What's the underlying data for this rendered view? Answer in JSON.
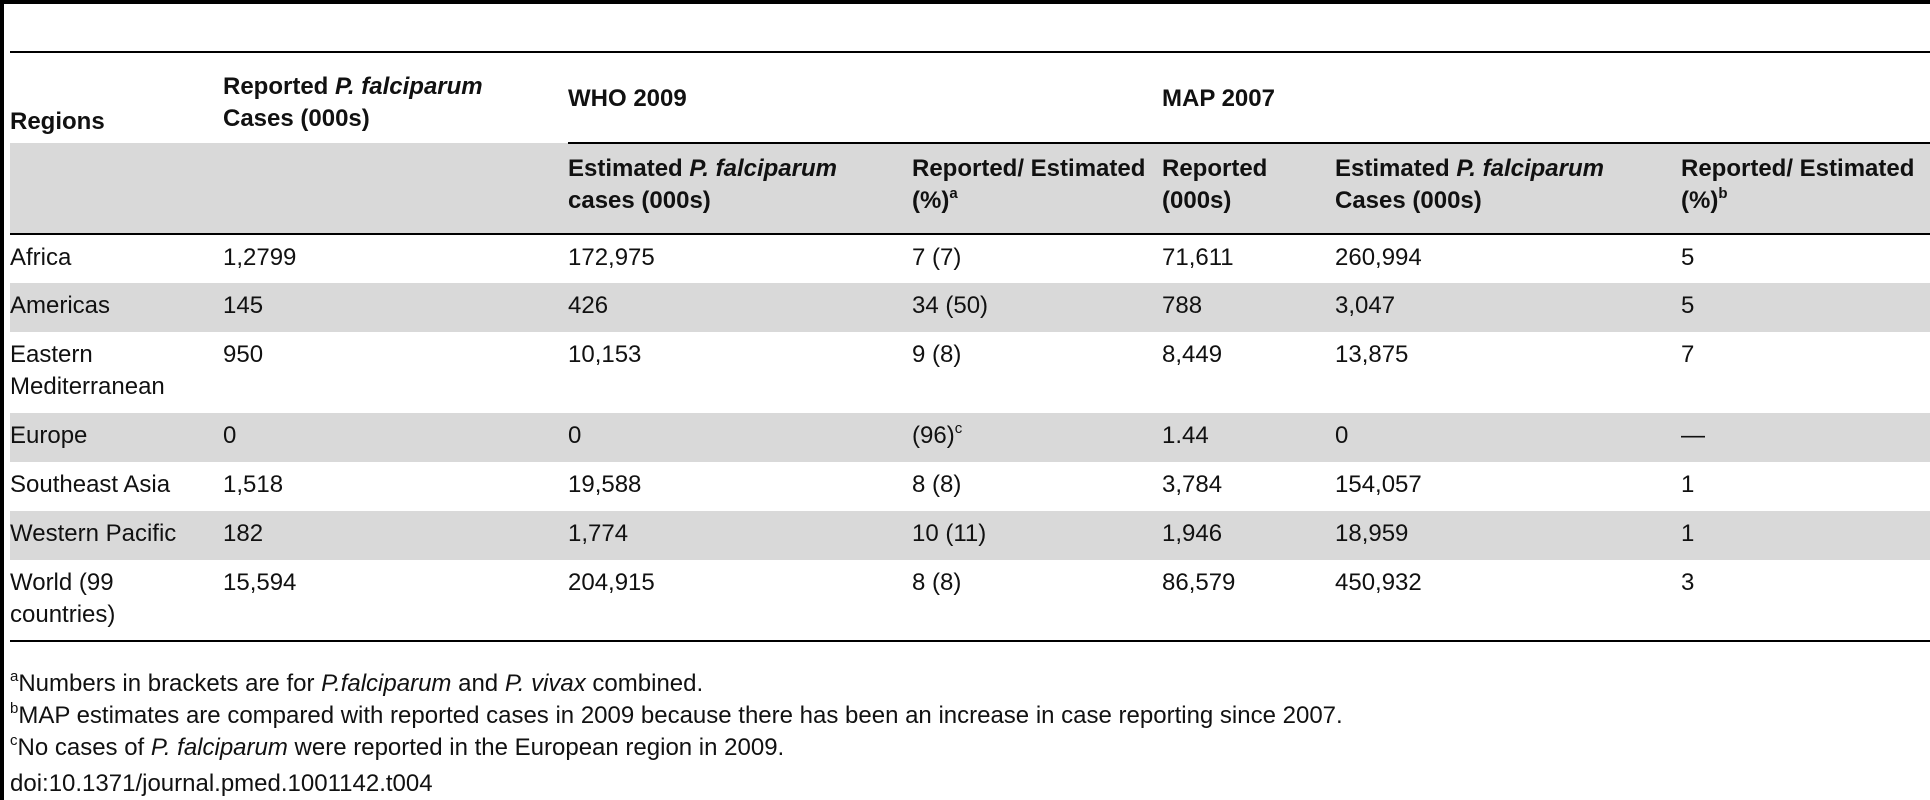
{
  "header": {
    "regions": "Regions",
    "reported_pre": "Reported ",
    "reported_italic": "P. falciparum",
    "reported_post": "Cases (000s)",
    "who_group": "WHO 2009",
    "map_group": "MAP 2007",
    "who_est_pre": "Estimated ",
    "who_est_italic": "P. falciparum",
    "who_est_post": "cases (000s)",
    "who_ratio": "Reported/ Estimated (%)",
    "who_ratio_sup": "a",
    "map_reported": "Reported (000s)",
    "map_est_pre": "Estimated ",
    "map_est_italic": "P. falciparum",
    "map_est_post": "Cases (000s)",
    "map_ratio": "Reported/ Estimated (%)",
    "map_ratio_sup": "b"
  },
  "rows": [
    {
      "region": "Africa",
      "reported": "1,2799",
      "who_est": "172,975",
      "who_ratio": "7 (7)",
      "who_ratio_sup": "",
      "map_reported": "71,611",
      "map_est": "260,994",
      "map_ratio": "5"
    },
    {
      "region": "Americas",
      "reported": "145",
      "who_est": "426",
      "who_ratio": "34 (50)",
      "who_ratio_sup": "",
      "map_reported": "788",
      "map_est": "3,047",
      "map_ratio": "5"
    },
    {
      "region": "Eastern Mediterranean",
      "reported": "950",
      "who_est": "10,153",
      "who_ratio": "9 (8)",
      "who_ratio_sup": "",
      "map_reported": "8,449",
      "map_est": "13,875",
      "map_ratio": "7"
    },
    {
      "region": "Europe",
      "reported": "0",
      "who_est": "0",
      "who_ratio": "(96)",
      "who_ratio_sup": "c",
      "map_reported": "1.44",
      "map_est": "0",
      "map_ratio": "—"
    },
    {
      "region": "Southeast Asia",
      "reported": "1,518",
      "who_est": "19,588",
      "who_ratio": "8 (8)",
      "who_ratio_sup": "",
      "map_reported": "3,784",
      "map_est": "154,057",
      "map_ratio": "1"
    },
    {
      "region": "Western Pacific",
      "reported": "182",
      "who_est": "1,774",
      "who_ratio": "10 (11)",
      "who_ratio_sup": "",
      "map_reported": "1,946",
      "map_est": "18,959",
      "map_ratio": "1"
    },
    {
      "region": "World (99 countries)",
      "reported": "15,594",
      "who_est": "204,915",
      "who_ratio": "8 (8)",
      "who_ratio_sup": "",
      "map_reported": "86,579",
      "map_est": "450,932",
      "map_ratio": "3"
    }
  ],
  "footnotes": {
    "a_sup": "a",
    "a_pre": "Numbers in brackets are for ",
    "a_italic1": "P.falciparum",
    "a_mid": " and ",
    "a_italic2": "P. vivax",
    "a_post": " combined.",
    "b_sup": "b",
    "b_text": "MAP estimates are compared with reported cases in 2009 because there has been an increase in case reporting since 2007.",
    "c_sup": "c",
    "c_pre": "No cases of ",
    "c_italic": "P. falciparum",
    "c_post": " were reported in the European region in 2009."
  },
  "doi": "doi:10.1371/journal.pmed.1001142.t004"
}
